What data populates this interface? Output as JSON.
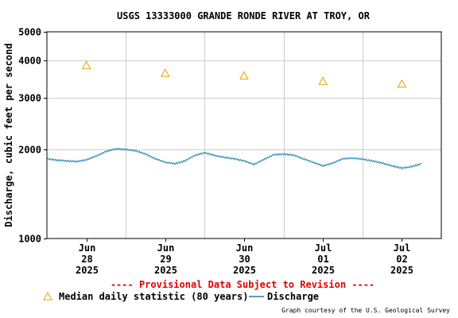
{
  "chart_data": {
    "type": "line",
    "title": "USGS 13333000 GRANDE RONDE RIVER AT TROY, OR",
    "ylabel": "Discharge, cubic feet per second",
    "xlabel": "",
    "y_scale": "log",
    "ylim": [
      1000,
      5000
    ],
    "y_ticks": [
      "1000",
      "2000",
      "3000",
      "4000",
      "5000"
    ],
    "xlim": [
      "2025-06-27T12:00",
      "2025-07-02T12:00"
    ],
    "x_ticks": [
      {
        "month": "Jun",
        "day": "28",
        "year": "2025",
        "t": "2025-06-28T00:00"
      },
      {
        "month": "Jun",
        "day": "29",
        "year": "2025",
        "t": "2025-06-29T00:00"
      },
      {
        "month": "Jun",
        "day": "30",
        "year": "2025",
        "t": "2025-06-30T00:00"
      },
      {
        "month": "Jul",
        "day": "01",
        "year": "2025",
        "t": "2025-07-01T00:00"
      },
      {
        "month": "Jul",
        "day": "02",
        "year": "2025",
        "t": "2025-07-02T00:00"
      }
    ],
    "grid": true,
    "series": [
      {
        "name": "Discharge",
        "kind": "line",
        "color": "#1f7fb4",
        "points": [
          [
            "2025-06-27T12:00",
            1860
          ],
          [
            "2025-06-27T15:00",
            1840
          ],
          [
            "2025-06-27T18:00",
            1830
          ],
          [
            "2025-06-27T21:00",
            1820
          ],
          [
            "2025-06-28T00:00",
            1845
          ],
          [
            "2025-06-28T03:00",
            1900
          ],
          [
            "2025-06-28T06:00",
            1970
          ],
          [
            "2025-06-28T09:00",
            2010
          ],
          [
            "2025-06-28T12:00",
            2000
          ],
          [
            "2025-06-28T15:00",
            1980
          ],
          [
            "2025-06-28T18:00",
            1930
          ],
          [
            "2025-06-28T21:00",
            1860
          ],
          [
            "2025-06-29T00:00",
            1810
          ],
          [
            "2025-06-29T03:00",
            1790
          ],
          [
            "2025-06-29T06:00",
            1830
          ],
          [
            "2025-06-29T09:00",
            1910
          ],
          [
            "2025-06-29T12:00",
            1950
          ],
          [
            "2025-06-29T15:00",
            1910
          ],
          [
            "2025-06-29T18:00",
            1880
          ],
          [
            "2025-06-29T21:00",
            1860
          ],
          [
            "2025-06-30T00:00",
            1830
          ],
          [
            "2025-06-30T03:00",
            1780
          ],
          [
            "2025-06-30T06:00",
            1850
          ],
          [
            "2025-06-30T09:00",
            1920
          ],
          [
            "2025-06-30T12:00",
            1930
          ],
          [
            "2025-06-30T15:00",
            1915
          ],
          [
            "2025-06-30T18:00",
            1860
          ],
          [
            "2025-06-30T21:00",
            1810
          ],
          [
            "2025-07-01T00:00",
            1760
          ],
          [
            "2025-07-01T03:00",
            1800
          ],
          [
            "2025-07-01T06:00",
            1860
          ],
          [
            "2025-07-01T09:00",
            1870
          ],
          [
            "2025-07-01T12:00",
            1855
          ],
          [
            "2025-07-01T15:00",
            1830
          ],
          [
            "2025-07-01T18:00",
            1800
          ],
          [
            "2025-07-01T21:00",
            1760
          ],
          [
            "2025-07-02T00:00",
            1730
          ],
          [
            "2025-07-02T03:00",
            1750
          ],
          [
            "2025-07-02T06:00",
            1790
          ]
        ]
      },
      {
        "name": "Median daily statistic (80 years)",
        "kind": "marker",
        "marker": "triangle",
        "color": "#e8a000",
        "points": [
          [
            "2025-06-28T00:00",
            3850
          ],
          [
            "2025-06-29T00:00",
            3620
          ],
          [
            "2025-06-30T00:00",
            3550
          ],
          [
            "2025-07-01T00:00",
            3400
          ],
          [
            "2025-07-02T00:00",
            3330
          ]
        ]
      }
    ],
    "notice": "---- Provisional Data Subject to Revision ----",
    "legend": [
      {
        "label": "Median daily statistic (80 years)",
        "symbol": "triangle",
        "color": "#e8a000"
      },
      {
        "label": "Discharge",
        "symbol": "line",
        "color": "#1f7fb4"
      }
    ],
    "credit": "Graph courtesy of the U.S. Geological Survey",
    "colors": {
      "notice": "#e00000",
      "grid": "#cccccc",
      "axis": "#000000"
    }
  }
}
